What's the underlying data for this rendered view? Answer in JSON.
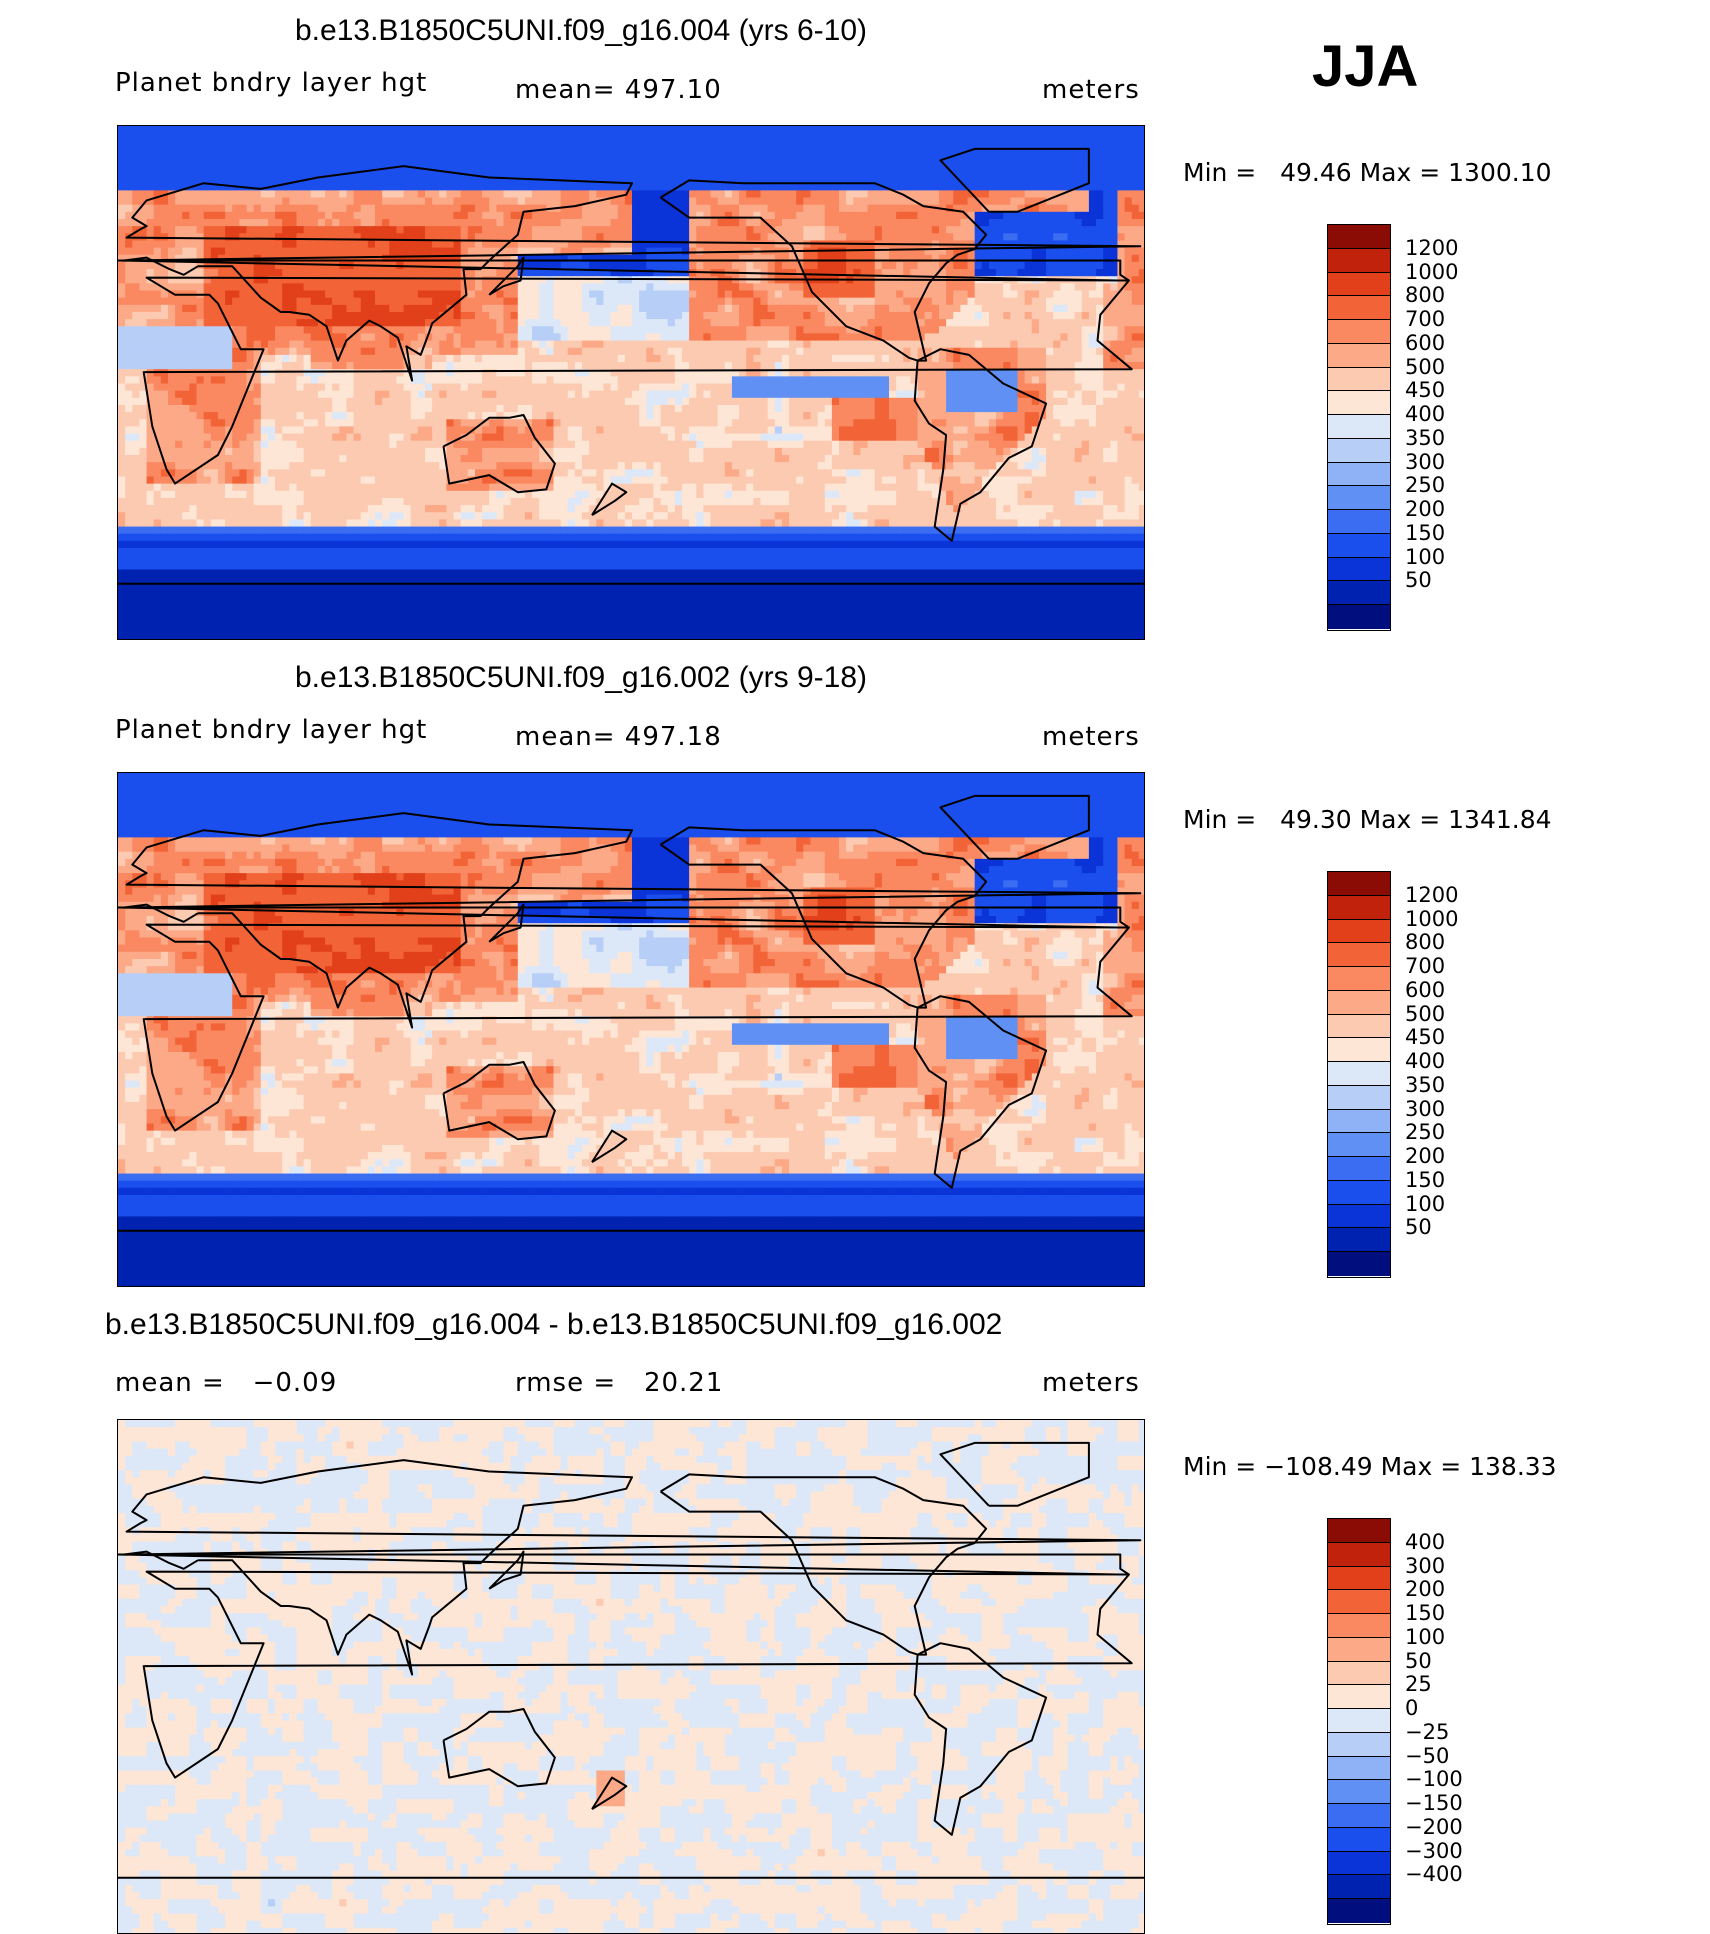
{
  "season": "JJA",
  "colors": {
    "coast": "#000000",
    "abs_scale": [
      "#000e7e",
      "#0022b0",
      "#0a33d8",
      "#1a4fee",
      "#3a6df2",
      "#6090f4",
      "#8fb2f6",
      "#b7cef7",
      "#dce8f8",
      "#fde6d6",
      "#fccab0",
      "#fca988",
      "#fa8860",
      "#f26437",
      "#e2401a",
      "#c0220c",
      "#8a0c04"
    ],
    "diff_scale": [
      "#000e7e",
      "#0022b0",
      "#0a33d8",
      "#1a4fee",
      "#3a6df2",
      "#6090f4",
      "#8fb2f6",
      "#b7cef7",
      "#dce8f8",
      "#fde6d6",
      "#fccab0",
      "#fca988",
      "#fa8860",
      "#f26437",
      "#e2401a",
      "#c0220c",
      "#8a0c04"
    ]
  },
  "chart_data": [
    {
      "type": "heatmap",
      "title": "b.e13.B1850C5UNI.f09_g16.004 (yrs 6-10)",
      "variable": "Planet bndry layer hgt",
      "mean_text": "mean= 497.10",
      "units": "meters",
      "minmax_text": "Min =   49.46 Max = 1300.10",
      "min": 49.46,
      "max": 1300.1,
      "mean": 497.1,
      "colorbar_levels": [
        1200,
        1000,
        800,
        700,
        600,
        500,
        450,
        400,
        350,
        300,
        250,
        200,
        150,
        100,
        50
      ],
      "colorbar_labels": [
        "1200",
        "1000",
        "800",
        "700",
        "600",
        "500",
        "450",
        "400",
        "350",
        "300",
        "250",
        "200",
        "150",
        "100",
        "50"
      ],
      "field": "abs"
    },
    {
      "type": "heatmap",
      "title": "b.e13.B1850C5UNI.f09_g16.002 (yrs 9-18)",
      "variable": "Planet bndry layer hgt",
      "mean_text": "mean= 497.18",
      "units": "meters",
      "minmax_text": "Min =   49.30 Max = 1341.84",
      "min": 49.3,
      "max": 1341.84,
      "mean": 497.18,
      "colorbar_levels": [
        1200,
        1000,
        800,
        700,
        600,
        500,
        450,
        400,
        350,
        300,
        250,
        200,
        150,
        100,
        50
      ],
      "colorbar_labels": [
        "1200",
        "1000",
        "800",
        "700",
        "600",
        "500",
        "450",
        "400",
        "350",
        "300",
        "250",
        "200",
        "150",
        "100",
        "50"
      ],
      "field": "abs"
    },
    {
      "type": "heatmap",
      "title": "b.e13.B1850C5UNI.f09_g16.004 - b.e13.B1850C5UNI.f09_g16.002",
      "mean_text": "mean =   −0.09",
      "rmse_text": "rmse =   20.21",
      "units": "meters",
      "minmax_text": "Min = −108.49 Max = 138.33",
      "min": -108.49,
      "max": 138.33,
      "mean": -0.09,
      "rmse": 20.21,
      "colorbar_levels": [
        400,
        300,
        200,
        150,
        100,
        50,
        25,
        0,
        -25,
        -50,
        -100,
        -150,
        -200,
        -300,
        -400
      ],
      "colorbar_labels": [
        "400",
        "300",
        "200",
        "150",
        "100",
        "50",
        "25",
        "0",
        "−25",
        "−50",
        "−100",
        "−150",
        "−200",
        "−300",
        "−400"
      ],
      "field": "diff"
    }
  ]
}
